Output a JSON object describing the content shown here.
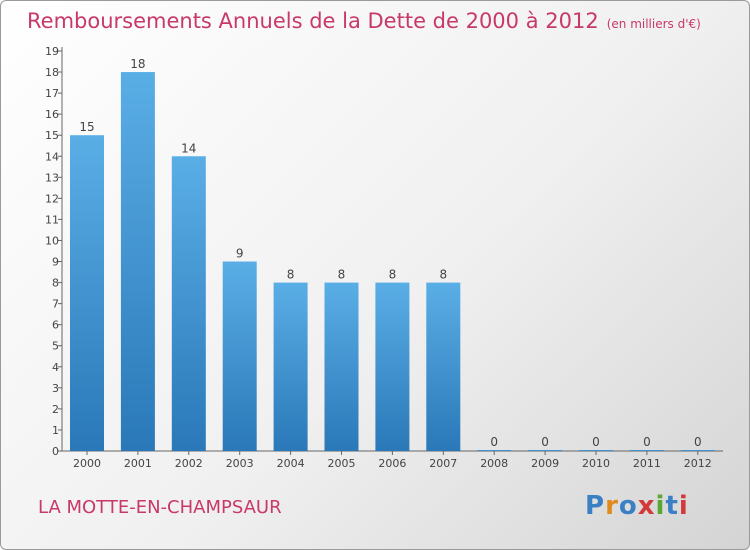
{
  "title": "Remboursements Annuels de la Dette de 2000 à 2012",
  "unit_note": "(en milliers d'€)",
  "commune": "LA MOTTE-EN-CHAMPSAUR",
  "logo": {
    "text": "Proxiti",
    "colors": [
      "#3b7fc4",
      "#e08a1e",
      "#3b7fc4",
      "#d23a3a",
      "#5aa832",
      "#3b7fc4",
      "#d23a3a"
    ]
  },
  "colors": {
    "title": "#c8386a",
    "bar_light": "#5aaee6",
    "bar_dark": "#2a78b8",
    "axis": "#666666",
    "label": "#444444"
  },
  "chart_data": {
    "type": "bar",
    "categories": [
      "2000",
      "2001",
      "2002",
      "2003",
      "2004",
      "2005",
      "2006",
      "2007",
      "2008",
      "2009",
      "2010",
      "2011",
      "2012"
    ],
    "values": [
      15,
      18,
      14,
      9,
      8,
      8,
      8,
      8,
      0,
      0,
      0,
      0,
      0
    ],
    "ylim": [
      0,
      19
    ],
    "yticks": [
      0,
      1,
      2,
      3,
      4,
      5,
      6,
      7,
      8,
      9,
      10,
      11,
      12,
      13,
      14,
      15,
      16,
      17,
      18,
      19
    ],
    "grid": false,
    "legend": "none"
  }
}
